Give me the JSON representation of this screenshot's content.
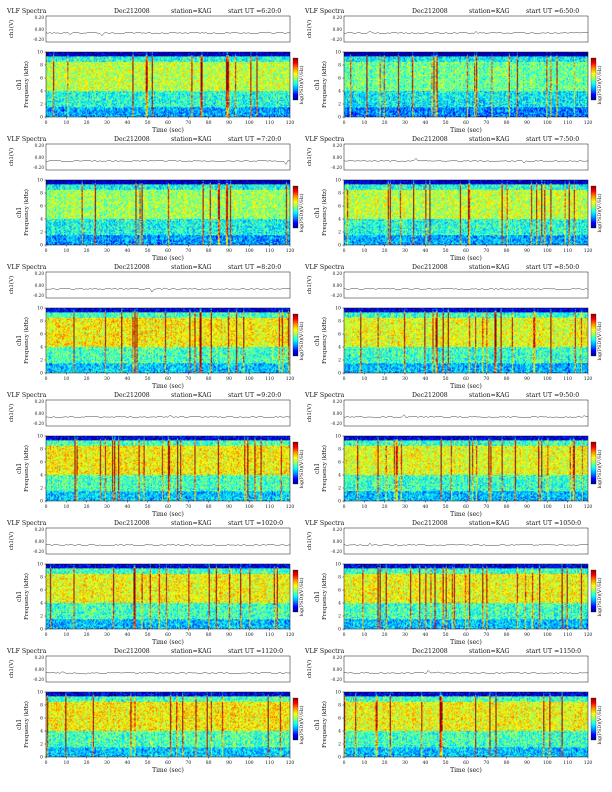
{
  "page": {
    "panel_title": "VLF Spectra",
    "date": "Dec212008",
    "station": "station=KAG",
    "start_prefix": "start UT ="
  },
  "axes": {
    "top_ylabel": "ch1(V)",
    "top_ticks": [
      "0.20",
      "0.00",
      "-0.20"
    ],
    "main_ylabel": "Frequency (kHz)",
    "channel_label": "ch1",
    "y_ticks": [
      "0",
      "2",
      "4",
      "6",
      "8",
      "10"
    ],
    "xlabel": "Time (sec)",
    "x_ticks": [
      "0",
      "10",
      "20",
      "30",
      "40",
      "50",
      "60",
      "70",
      "80",
      "90",
      "100",
      "110",
      "120"
    ],
    "cbar_label": "log(PSD)(V²/Hz)"
  },
  "colors": {
    "colormap": [
      "#00008f",
      "#0000ff",
      "#008fff",
      "#00ffff",
      "#8fff70",
      "#ffff00",
      "#ff8f00",
      "#ff0000",
      "#8f0000"
    ],
    "axis": "#111111",
    "background": "#ffffff"
  },
  "chart_data": [
    {
      "type": "heatmap",
      "start_ut": "6:20:0",
      "x_range": [
        0,
        120
      ],
      "y_range": [
        0,
        10
      ],
      "xlabel": "Time (sec)",
      "ylabel": "Frequency (kHz)",
      "activity": 0.45
    },
    {
      "type": "heatmap",
      "start_ut": "6:50:0",
      "x_range": [
        0,
        120
      ],
      "y_range": [
        0,
        10
      ],
      "xlabel": "Time (sec)",
      "ylabel": "Frequency (kHz)",
      "activity": 0.2
    },
    {
      "type": "heatmap",
      "start_ut": "7:20:0",
      "x_range": [
        0,
        120
      ],
      "y_range": [
        0,
        10
      ],
      "xlabel": "Time (sec)",
      "ylabel": "Frequency (kHz)",
      "activity": 0.35
    },
    {
      "type": "heatmap",
      "start_ut": "7:50:0",
      "x_range": [
        0,
        120
      ],
      "y_range": [
        0,
        10
      ],
      "xlabel": "Time (sec)",
      "ylabel": "Frequency (kHz)",
      "activity": 0.45
    },
    {
      "type": "heatmap",
      "start_ut": "8:20:0",
      "x_range": [
        0,
        120
      ],
      "y_range": [
        0,
        10
      ],
      "xlabel": "Time (sec)",
      "ylabel": "Frequency (kHz)",
      "activity": 0.65
    },
    {
      "type": "heatmap",
      "start_ut": "8:50:0",
      "x_range": [
        0,
        120
      ],
      "y_range": [
        0,
        10
      ],
      "xlabel": "Time (sec)",
      "ylabel": "Frequency (kHz)",
      "activity": 0.55
    },
    {
      "type": "heatmap",
      "start_ut": "9:20:0",
      "x_range": [
        0,
        120
      ],
      "y_range": [
        0,
        10
      ],
      "xlabel": "Time (sec)",
      "ylabel": "Frequency (kHz)",
      "activity": 0.65
    },
    {
      "type": "heatmap",
      "start_ut": "9:50:0",
      "x_range": [
        0,
        120
      ],
      "y_range": [
        0,
        10
      ],
      "xlabel": "Time (sec)",
      "ylabel": "Frequency (kHz)",
      "activity": 0.55
    },
    {
      "type": "heatmap",
      "start_ut": "1020:0",
      "x_range": [
        0,
        120
      ],
      "y_range": [
        0,
        10
      ],
      "xlabel": "Time (sec)",
      "ylabel": "Frequency (kHz)",
      "activity": 0.6
    },
    {
      "type": "heatmap",
      "start_ut": "1050:0",
      "x_range": [
        0,
        120
      ],
      "y_range": [
        0,
        10
      ],
      "xlabel": "Time (sec)",
      "ylabel": "Frequency (kHz)",
      "activity": 0.6
    },
    {
      "type": "heatmap",
      "start_ut": "1120:0",
      "x_range": [
        0,
        120
      ],
      "y_range": [
        0,
        10
      ],
      "xlabel": "Time (sec)",
      "ylabel": "Frequency (kHz)",
      "activity": 0.65
    },
    {
      "type": "heatmap",
      "start_ut": "1150:0",
      "x_range": [
        0,
        120
      ],
      "y_range": [
        0,
        10
      ],
      "xlabel": "Time (sec)",
      "ylabel": "Frequency (kHz)",
      "activity": 0.6
    }
  ]
}
